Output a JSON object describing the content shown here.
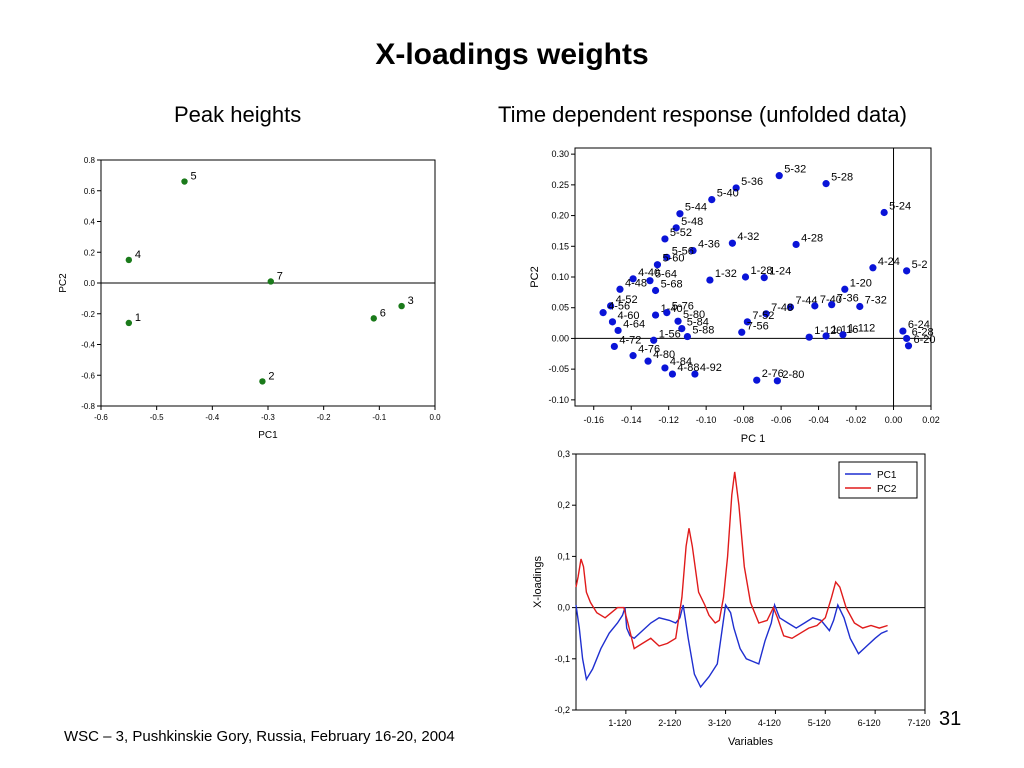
{
  "slide": {
    "title": "X-loadings weights",
    "left_heading": "Peak heights",
    "right_heading": "Time dependent response (unfolded data)",
    "footer": "WSC – 3, Pushkinskie Gory, Russia, February 16-20, 2004",
    "page_number": "31"
  },
  "colors": {
    "green_point": "#1a7a1a",
    "blue_point": "#0a14d8",
    "pc1_line": "#1f2fd0",
    "pc2_line": "#e01b1b"
  },
  "chart_data": [
    {
      "type": "scatter",
      "xlabel": "PC1",
      "ylabel": "PC2",
      "xlim": [
        -0.6,
        0.0
      ],
      "ylim": [
        -0.8,
        0.8
      ],
      "xticks": [
        "-0.6",
        "-0.5",
        "-0.4",
        "-0.3",
        "-0.2",
        "-0.1",
        "0.0"
      ],
      "yticks": [
        "-0.8",
        "-0.6",
        "-0.4",
        "-0.2",
        "0.0",
        "0.2",
        "0.4",
        "0.6",
        "0.8"
      ],
      "points": [
        {
          "label": "1",
          "x": -0.55,
          "y": -0.26
        },
        {
          "label": "2",
          "x": -0.31,
          "y": -0.64
        },
        {
          "label": "3",
          "x": -0.06,
          "y": -0.15
        },
        {
          "label": "4",
          "x": -0.55,
          "y": 0.15
        },
        {
          "label": "5",
          "x": -0.45,
          "y": 0.66
        },
        {
          "label": "6",
          "x": -0.11,
          "y": -0.23
        },
        {
          "label": "7",
          "x": -0.295,
          "y": 0.01
        }
      ]
    },
    {
      "type": "scatter",
      "xlabel": "PC 1",
      "ylabel": "PC2",
      "xlim": [
        -0.17,
        0.02
      ],
      "ylim": [
        -0.11,
        0.31
      ],
      "xticks": [
        "-0.16",
        "-0.14",
        "-0.12",
        "-0.10",
        "-0.08",
        "-0.06",
        "-0.04",
        "-0.02",
        "0.00",
        "0.02"
      ],
      "yticks": [
        "-0.10",
        "-0.05",
        "0.00",
        "0.05",
        "0.10",
        "0.15",
        "0.20",
        "0.25",
        "0.30"
      ],
      "labeled_points": [
        {
          "label": "5-32",
          "x": -0.061,
          "y": 0.265
        },
        {
          "label": "5-28",
          "x": -0.036,
          "y": 0.252
        },
        {
          "label": "5-36",
          "x": -0.084,
          "y": 0.245
        },
        {
          "label": "5-40",
          "x": -0.097,
          "y": 0.226
        },
        {
          "label": "5-24",
          "x": -0.005,
          "y": 0.205
        },
        {
          "label": "5-44",
          "x": -0.114,
          "y": 0.203
        },
        {
          "label": "5-48",
          "x": -0.116,
          "y": 0.18
        },
        {
          "label": "5-52",
          "x": -0.122,
          "y": 0.162
        },
        {
          "label": "4-32",
          "x": -0.086,
          "y": 0.155
        },
        {
          "label": "4-28",
          "x": -0.052,
          "y": 0.153
        },
        {
          "label": "4-36",
          "x": -0.107,
          "y": 0.143
        },
        {
          "label": "5-56",
          "x": -0.121,
          "y": 0.132
        },
        {
          "label": "5-60",
          "x": -0.126,
          "y": 0.12
        },
        {
          "label": "4-24",
          "x": -0.011,
          "y": 0.115
        },
        {
          "label": "5-2",
          "x": 0.007,
          "y": 0.11
        },
        {
          "label": "1-28",
          "x": -0.079,
          "y": 0.1
        },
        {
          "label": "1-24",
          "x": -0.069,
          "y": 0.099
        },
        {
          "label": "4-40",
          "x": -0.139,
          "y": 0.097
        },
        {
          "label": "5-64",
          "x": -0.13,
          "y": 0.094
        },
        {
          "label": "1-32",
          "x": -0.098,
          "y": 0.095
        },
        {
          "label": "1-20",
          "x": -0.026,
          "y": 0.08
        },
        {
          "label": "4-48",
          "x": -0.146,
          "y": 0.08
        },
        {
          "label": "5-68",
          "x": -0.127,
          "y": 0.078
        },
        {
          "label": "4-52",
          "x": -0.151,
          "y": 0.053
        },
        {
          "label": "7-44",
          "x": -0.055,
          "y": 0.051
        },
        {
          "label": "7-40",
          "x": -0.042,
          "y": 0.053
        },
        {
          "label": "7-36",
          "x": -0.033,
          "y": 0.055
        },
        {
          "label": "7-32",
          "x": -0.018,
          "y": 0.052
        },
        {
          "label": "4-56",
          "x": -0.155,
          "y": 0.042
        },
        {
          "label": "1-40",
          "x": -0.127,
          "y": 0.038
        },
        {
          "label": "5-76",
          "x": -0.121,
          "y": 0.042
        },
        {
          "label": "7-48",
          "x": -0.068,
          "y": 0.04
        },
        {
          "label": "7-52",
          "x": -0.078,
          "y": 0.027
        },
        {
          "label": "5-80",
          "x": -0.115,
          "y": 0.028
        },
        {
          "label": "4-60",
          "x": -0.15,
          "y": 0.027
        },
        {
          "label": "5-84",
          "x": -0.113,
          "y": 0.016
        },
        {
          "label": "7-56",
          "x": -0.081,
          "y": 0.01
        },
        {
          "label": "4-64",
          "x": -0.147,
          "y": 0.013
        },
        {
          "label": "5-88",
          "x": -0.11,
          "y": 0.003
        },
        {
          "label": "1-56",
          "x": -0.128,
          "y": -0.003
        },
        {
          "label": "4-72",
          "x": -0.149,
          "y": -0.013
        },
        {
          "label": "4-76",
          "x": -0.139,
          "y": -0.028
        },
        {
          "label": "4-80",
          "x": -0.131,
          "y": -0.037
        },
        {
          "label": "4-84",
          "x": -0.122,
          "y": -0.048
        },
        {
          "label": "4-88",
          "x": -0.118,
          "y": -0.058
        },
        {
          "label": "4-92",
          "x": -0.106,
          "y": -0.058
        },
        {
          "label": "1-120",
          "x": -0.045,
          "y": 0.002
        },
        {
          "label": "1-116",
          "x": -0.036,
          "y": 0.004
        },
        {
          "label": "1-112",
          "x": -0.027,
          "y": 0.006
        },
        {
          "label": "6-24",
          "x": 0.005,
          "y": 0.012
        },
        {
          "label": "6-28",
          "x": 0.007,
          "y": 0.0
        },
        {
          "label": "6-20",
          "x": 0.008,
          "y": -0.012
        },
        {
          "label": "2-76",
          "x": -0.073,
          "y": -0.068
        },
        {
          "label": "2-80",
          "x": -0.062,
          "y": -0.069
        }
      ]
    },
    {
      "type": "line",
      "xlabel": "Variables",
      "ylabel": "X-loadings",
      "xlim": [
        0,
        840
      ],
      "ylim": [
        -0.2,
        0.3
      ],
      "xticks": [
        "1-120",
        "2-120",
        "3-120",
        "4-120",
        "5-120",
        "6-120",
        "7-120"
      ],
      "yticks": [
        "-0,2",
        "-0,1",
        "0,0",
        "0,1",
        "0,2",
        "0,3"
      ],
      "legend": "top-right",
      "series": [
        {
          "name": "PC1",
          "points": [
            [
              0,
              0.005
            ],
            [
              8,
              -0.04
            ],
            [
              16,
              -0.1
            ],
            [
              25,
              -0.14
            ],
            [
              40,
              -0.12
            ],
            [
              60,
              -0.08
            ],
            [
              80,
              -0.05
            ],
            [
              100,
              -0.03
            ],
            [
              112,
              -0.015
            ],
            [
              118,
              0.0
            ],
            [
              122,
              -0.04
            ],
            [
              130,
              -0.055
            ],
            [
              140,
              -0.06
            ],
            [
              160,
              -0.045
            ],
            [
              180,
              -0.03
            ],
            [
              200,
              -0.02
            ],
            [
              225,
              -0.025
            ],
            [
              240,
              -0.03
            ],
            [
              250,
              -0.02
            ],
            [
              258,
              0.005
            ],
            [
              270,
              -0.06
            ],
            [
              285,
              -0.13
            ],
            [
              300,
              -0.155
            ],
            [
              320,
              -0.135
            ],
            [
              340,
              -0.11
            ],
            [
              360,
              0.005
            ],
            [
              372,
              -0.01
            ],
            [
              380,
              -0.04
            ],
            [
              395,
              -0.08
            ],
            [
              410,
              -0.1
            ],
            [
              425,
              -0.105
            ],
            [
              440,
              -0.11
            ],
            [
              455,
              -0.065
            ],
            [
              470,
              -0.03
            ],
            [
              478,
              0.005
            ],
            [
              490,
              -0.02
            ],
            [
              510,
              -0.03
            ],
            [
              530,
              -0.04
            ],
            [
              550,
              -0.03
            ],
            [
              570,
              -0.02
            ],
            [
              590,
              -0.025
            ],
            [
              610,
              -0.045
            ],
            [
              620,
              -0.025
            ],
            [
              630,
              0.005
            ],
            [
              645,
              -0.02
            ],
            [
              660,
              -0.06
            ],
            [
              680,
              -0.09
            ],
            [
              700,
              -0.075
            ],
            [
              720,
              -0.06
            ],
            [
              735,
              -0.05
            ],
            [
              750,
              -0.045
            ]
          ]
        },
        {
          "name": "PC2",
          "points": [
            [
              0,
              0.04
            ],
            [
              5,
              0.06
            ],
            [
              12,
              0.095
            ],
            [
              18,
              0.08
            ],
            [
              25,
              0.03
            ],
            [
              35,
              0.01
            ],
            [
              50,
              -0.01
            ],
            [
              70,
              -0.02
            ],
            [
              85,
              -0.01
            ],
            [
              100,
              0.0
            ],
            [
              115,
              0.0
            ],
            [
              125,
              -0.03
            ],
            [
              140,
              -0.08
            ],
            [
              160,
              -0.07
            ],
            [
              180,
              -0.06
            ],
            [
              200,
              -0.075
            ],
            [
              220,
              -0.07
            ],
            [
              240,
              -0.06
            ],
            [
              255,
              0.02
            ],
            [
              265,
              0.12
            ],
            [
              272,
              0.155
            ],
            [
              280,
              0.12
            ],
            [
              295,
              0.03
            ],
            [
              310,
              0.005
            ],
            [
              320,
              -0.015
            ],
            [
              335,
              -0.03
            ],
            [
              345,
              -0.025
            ],
            [
              355,
              0.02
            ],
            [
              365,
              0.1
            ],
            [
              375,
              0.22
            ],
            [
              382,
              0.265
            ],
            [
              392,
              0.2
            ],
            [
              405,
              0.08
            ],
            [
              420,
              0.01
            ],
            [
              440,
              -0.03
            ],
            [
              460,
              -0.025
            ],
            [
              475,
              0.0
            ],
            [
              485,
              -0.02
            ],
            [
              500,
              -0.055
            ],
            [
              520,
              -0.06
            ],
            [
              540,
              -0.05
            ],
            [
              560,
              -0.04
            ],
            [
              580,
              -0.035
            ],
            [
              600,
              -0.02
            ],
            [
              615,
              0.02
            ],
            [
              625,
              0.05
            ],
            [
              635,
              0.04
            ],
            [
              650,
              0.0
            ],
            [
              670,
              -0.03
            ],
            [
              690,
              -0.04
            ],
            [
              710,
              -0.035
            ],
            [
              730,
              -0.04
            ],
            [
              750,
              -0.035
            ]
          ]
        }
      ]
    }
  ]
}
